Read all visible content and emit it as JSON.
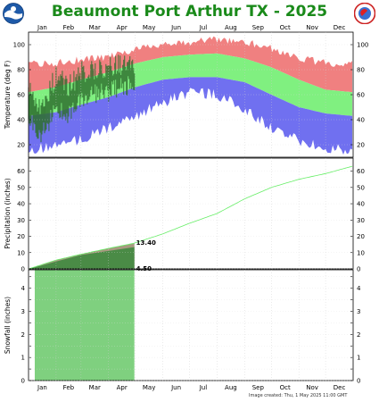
{
  "title": "Beaumont Port Arthur TX - 2025",
  "footer": "Image created: Thu, 1 May 2025 11:00 GMT",
  "colors": {
    "title": "#1a8a1a",
    "record_high": "#f08080",
    "normal": "#80f080",
    "record_low": "#7070f0",
    "observed": "#2f6f2f",
    "precip_normal": "#66ee66",
    "precip_observed_fill": "#a89a80",
    "snow_normal_fill": "#7fd07f"
  },
  "months": [
    "Jan",
    "Feb",
    "Mar",
    "Apr",
    "May",
    "Jun",
    "Jul",
    "Aug",
    "Sep",
    "Oct",
    "Nov",
    "Dec"
  ],
  "chart_data": [
    {
      "type": "area",
      "ylabel": "Temperature (deg F)",
      "ylim": [
        10,
        110
      ],
      "yticks": [
        20,
        40,
        60,
        80,
        100
      ],
      "series": [
        {
          "x": [
            "Jan 1",
            "Feb 1",
            "Mar 1",
            "Apr 1",
            "May 1",
            "Jun 1",
            "Jul 1",
            "Aug 1",
            "Sep 1",
            "Oct 1",
            "Nov 1",
            "Dec 1",
            "Dec 31"
          ],
          "record_high": [
            83,
            84,
            87,
            89,
            95,
            100,
            101,
            103,
            101,
            96,
            88,
            84,
            83
          ],
          "normal_high": [
            62,
            66,
            72,
            78,
            85,
            90,
            92,
            93,
            89,
            82,
            72,
            64,
            62
          ],
          "normal_low": [
            43,
            46,
            52,
            58,
            66,
            72,
            74,
            74,
            70,
            60,
            50,
            45,
            43
          ],
          "record_low": [
            18,
            20,
            26,
            35,
            45,
            55,
            64,
            62,
            50,
            35,
            25,
            18,
            18
          ]
        },
        {
          "x": [
            "Jan 1",
            "Jan 15",
            "Feb 1",
            "Feb 15",
            "Mar 1",
            "Mar 15",
            "Apr 1",
            "Apr 15",
            "Apr 30"
          ],
          "observed_high": [
            70,
            48,
            75,
            66,
            78,
            80,
            82,
            84,
            83
          ],
          "observed_low": [
            40,
            28,
            48,
            45,
            55,
            60,
            62,
            66,
            68
          ]
        }
      ]
    },
    {
      "type": "line",
      "ylabel": "Precipitation (inches)",
      "ylim": [
        0,
        68
      ],
      "yticks": [
        0,
        10,
        20,
        30,
        40,
        50,
        60
      ],
      "series": [
        {
          "name": "normal",
          "x": [
            "Jan 1",
            "Feb 1",
            "Mar 1",
            "Apr 1",
            "Apr 30",
            "May 1",
            "Jun 1",
            "Jul 1",
            "Aug 1",
            "Sep 1",
            "Oct 1",
            "Nov 1",
            "Dec 1",
            "Dec 31"
          ],
          "values": [
            0,
            5.4,
            9.0,
            12.6,
            15.8,
            16.0,
            21.5,
            28.0,
            34.0,
            43.0,
            50.0,
            55.0,
            58.5,
            63.0
          ]
        },
        {
          "name": "observed",
          "x": [
            "Jan 1",
            "Jan 15",
            "Feb 1",
            "Mar 1",
            "Apr 1",
            "Apr 30"
          ],
          "values": [
            0,
            2.0,
            4.5,
            8.5,
            11.0,
            13.4
          ]
        }
      ],
      "labels": [
        {
          "text": "13.40",
          "x": "Apr 30",
          "y": 15.8
        },
        {
          "text": "4.50",
          "x": "Apr 30",
          "y": 0
        }
      ]
    },
    {
      "type": "area",
      "ylabel": "Snowfall (inches)",
      "ylim": [
        0,
        4.8
      ],
      "yticks": [
        0,
        0.5,
        1,
        1.5,
        2,
        2.5,
        3,
        3.5,
        4,
        4.5
      ],
      "ytick_labels": [
        "0",
        "",
        "1",
        "",
        "2",
        "",
        "3",
        "",
        "4",
        ""
      ],
      "series": [
        {
          "name": "normal",
          "x_start": "Jan 8",
          "x_end": "Apr 30",
          "value": 4.8
        }
      ]
    }
  ]
}
